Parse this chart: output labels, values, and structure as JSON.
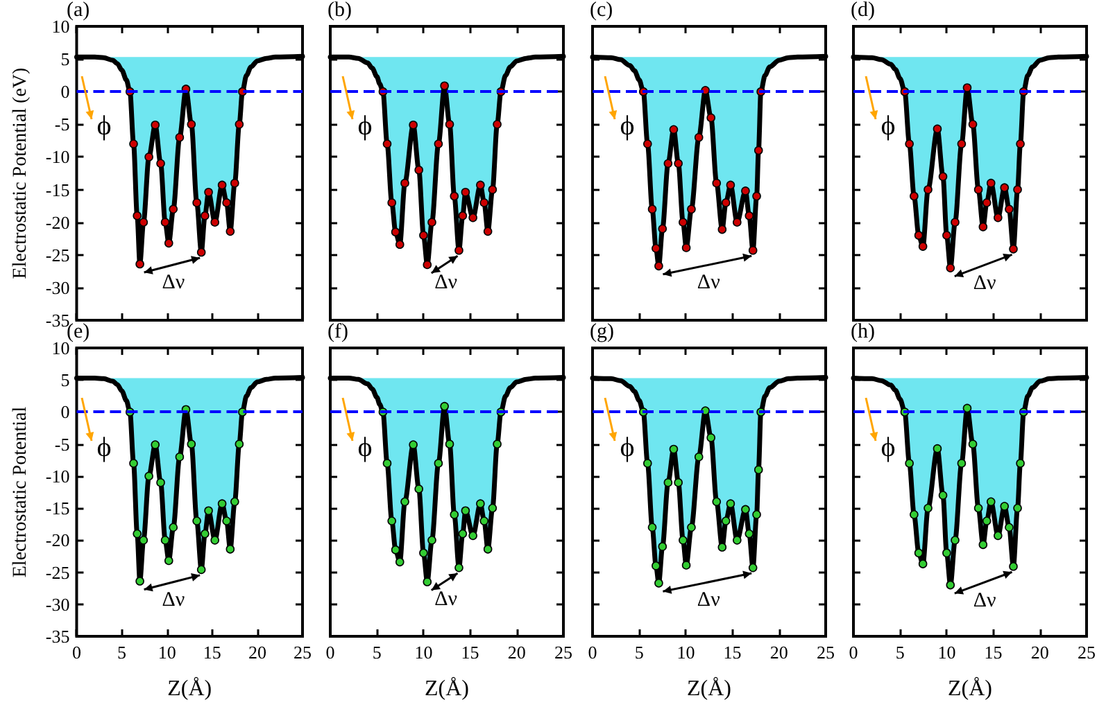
{
  "chart_data": [
    {
      "type": "line",
      "ylabel": "Electrostatic Potential (eV)",
      "xlim": [
        0,
        25
      ],
      "xticks": [
        0,
        5,
        10,
        15,
        20,
        25
      ],
      "ylim": [
        -35,
        10
      ],
      "yticks": [
        -35,
        -30,
        -25,
        -20,
        -15,
        -10,
        -5,
        0,
        5,
        10
      ],
      "tick_labels": "y",
      "annotations": [
        "(a)",
        "ϕ",
        "Δν"
      ],
      "ref_lines": [
        {
          "axis": "y",
          "value": 0,
          "color": "#0000ff",
          "line_style": "dashed"
        }
      ],
      "series": [
        {
          "type": "line",
          "color": "#000000",
          "x": [
            0,
            2,
            3,
            4,
            4.5,
            5,
            5.5,
            5.9,
            6.3,
            6.7,
            7.0,
            7.4,
            8.0,
            8.7,
            9.3,
            9.8,
            10.2,
            10.7,
            11.4,
            12.1,
            12.7,
            13.3,
            13.8,
            14.2,
            14.6,
            15.3,
            16.1,
            16.6,
            17.0,
            17.5,
            18.0,
            18.35,
            18.8,
            19.3,
            20,
            21,
            22,
            25
          ],
          "values": [
            5.3,
            5.3,
            5.2,
            4.8,
            4.3,
            3.3,
            1.8,
            0,
            -8,
            -19,
            -26.4,
            -20,
            -10,
            -5.1,
            -11,
            -20,
            -23.2,
            -18,
            -7,
            0.4,
            -5,
            -17,
            -24.6,
            -19,
            -15.4,
            -20,
            -14.3,
            -17,
            -21.4,
            -14,
            -5,
            0,
            2.5,
            3.8,
            4.7,
            5.1,
            5.3,
            5.4
          ],
          "lower": [
            5.3,
            5.3,
            5.2,
            4.8,
            4.3,
            3.3,
            1.8,
            0,
            -8,
            -19,
            -26.4,
            -20,
            -10,
            -5.1,
            -11,
            -20,
            -23.2,
            -18,
            -7,
            0.4,
            -5,
            -17,
            -24.6,
            -19,
            -15.4,
            -20,
            -14.3,
            -17,
            -21.4,
            -14,
            -5,
            0,
            2.5,
            3.8,
            4.7,
            5.1,
            5.3,
            5.4
          ],
          "upper": [
            5.3,
            5.3,
            5.3,
            5.3,
            5.3,
            5.3,
            5.3,
            5.3,
            5.3,
            5.3,
            5.3,
            5.3,
            5.3,
            5.3,
            5.3,
            5.3,
            5.3,
            5.3,
            5.3,
            5.3,
            5.3,
            5.3,
            5.3,
            5.3,
            5.3,
            5.3,
            5.3,
            5.3,
            5.3,
            5.3,
            5.3,
            5.3,
            5.3,
            5.3,
            5.3,
            5.3,
            5.3,
            5.4
          ]
        },
        {
          "type": "scatter",
          "color": "#cc0000",
          "marker": "circle",
          "x": [
            5.9,
            6.3,
            6.7,
            7.0,
            7.4,
            8.0,
            8.7,
            9.3,
            9.8,
            10.2,
            10.7,
            11.4,
            12.1,
            12.7,
            13.3,
            13.8,
            14.2,
            14.6,
            15.3,
            16.1,
            16.6,
            17.0,
            17.5,
            18.0,
            18.35
          ],
          "values": [
            0,
            -8,
            -19,
            -26.4,
            -20,
            -10,
            -5.1,
            -11,
            -20,
            -23.2,
            -18,
            -7,
            0.4,
            -5,
            -17,
            -24.6,
            -19,
            -15.4,
            -20,
            -14.3,
            -17,
            -21.4,
            -14,
            -5,
            0
          ]
        }
      ]
    },
    {
      "type": "line",
      "xlim": [
        0,
        25
      ],
      "xticks": [
        0,
        5,
        10,
        15,
        20,
        25
      ],
      "ylim": [
        -35,
        10
      ],
      "yticks": [
        -35,
        -30,
        -25,
        -20,
        -15,
        -10,
        -5,
        0,
        5,
        10
      ],
      "tick_labels": false,
      "annotations": [
        "(b)",
        "ϕ",
        "Δν"
      ],
      "ref_lines": [
        {
          "axis": "y",
          "value": 0,
          "color": "#0000ff",
          "line_style": "dashed"
        }
      ],
      "series": [
        {
          "type": "line",
          "color": "#000000",
          "x": [
            0,
            2,
            3,
            4,
            4.5,
            5,
            5.3,
            5.65,
            6.1,
            6.6,
            7.0,
            7.46,
            8.0,
            8.9,
            9.5,
            10.0,
            10.4,
            10.9,
            11.6,
            12.25,
            12.8,
            13.3,
            13.8,
            14.2,
            14.5,
            15.3,
            16.1,
            16.5,
            16.9,
            17.4,
            17.9,
            18.3,
            18.8,
            19.3,
            20,
            21,
            22,
            25
          ],
          "values": [
            5.3,
            5.3,
            5.1,
            4.4,
            3.6,
            2.3,
            1.2,
            0,
            -8,
            -17,
            -21.5,
            -23.4,
            -14,
            -5.1,
            -12,
            -22,
            -26.5,
            -20,
            -8,
            0.9,
            -5,
            -16,
            -24.3,
            -19,
            -15.4,
            -19.3,
            -14.3,
            -17,
            -21.4,
            -15,
            -5,
            0,
            2.5,
            3.8,
            4.7,
            5.1,
            5.3,
            5.4
          ],
          "lower": [
            5.3,
            5.3,
            5.1,
            4.4,
            3.6,
            2.3,
            1.2,
            0,
            -8,
            -17,
            -21.5,
            -23.4,
            -14,
            -5.1,
            -12,
            -22,
            -26.5,
            -20,
            -8,
            0.9,
            -5,
            -16,
            -24.3,
            -19,
            -15.4,
            -19.3,
            -14.3,
            -17,
            -21.4,
            -15,
            -5,
            0,
            2.5,
            3.8,
            4.7,
            5.1,
            5.3,
            5.4
          ],
          "upper": [
            5.3,
            5.3,
            5.3,
            5.3,
            5.3,
            5.3,
            5.3,
            5.3,
            5.3,
            5.3,
            5.3,
            5.3,
            5.3,
            5.3,
            5.3,
            5.3,
            5.3,
            5.3,
            5.3,
            5.3,
            5.3,
            5.3,
            5.3,
            5.3,
            5.3,
            5.3,
            5.3,
            5.3,
            5.3,
            5.3,
            5.3,
            5.3,
            5.3,
            5.3,
            5.3,
            5.3,
            5.3,
            5.4
          ]
        },
        {
          "type": "scatter",
          "color": "#cc0000",
          "marker": "circle",
          "x": [
            5.65,
            6.1,
            6.6,
            7.0,
            7.46,
            8.0,
            8.9,
            9.5,
            10.0,
            10.4,
            10.9,
            11.6,
            12.25,
            12.8,
            13.3,
            13.8,
            14.2,
            14.5,
            15.3,
            16.1,
            16.5,
            16.9,
            17.4,
            17.9,
            18.3
          ],
          "values": [
            0,
            -8,
            -17,
            -21.5,
            -23.4,
            -14,
            -5.1,
            -12,
            -22,
            -26.5,
            -20,
            -8,
            0.9,
            -5,
            -16,
            -24.3,
            -19,
            -15.4,
            -19.3,
            -14.3,
            -17,
            -21.4,
            -15,
            -5,
            0
          ]
        }
      ]
    },
    {
      "type": "line",
      "xlim": [
        0,
        25
      ],
      "xticks": [
        0,
        5,
        10,
        15,
        20,
        25
      ],
      "ylim": [
        -35,
        10
      ],
      "yticks": [
        -35,
        -30,
        -25,
        -20,
        -15,
        -10,
        -5,
        0,
        5,
        10
      ],
      "tick_labels": false,
      "annotations": [
        "(c)",
        "ϕ",
        "Δν"
      ],
      "ref_lines": [
        {
          "axis": "y",
          "value": 0,
          "color": "#0000ff",
          "line_style": "dashed"
        }
      ],
      "series": [
        {
          "type": "line",
          "color": "#000000",
          "x": [
            0,
            2,
            3,
            4,
            4.5,
            5,
            5.45,
            5.9,
            6.4,
            6.8,
            7.1,
            7.5,
            8.1,
            8.7,
            9.2,
            9.7,
            10.05,
            10.6,
            11.4,
            12.1,
            12.7,
            13.3,
            13.9,
            14.3,
            14.8,
            15.5,
            16.4,
            16.8,
            17.2,
            17.6,
            17.8,
            18.05,
            18.5,
            19,
            20,
            21,
            22,
            25
          ],
          "values": [
            5.3,
            5.2,
            4.9,
            4.0,
            3.2,
            1.8,
            0,
            -8,
            -18,
            -24,
            -26.7,
            -21,
            -11,
            -5.8,
            -11,
            -20,
            -23.9,
            -18,
            -7,
            0.2,
            -4,
            -14,
            -21.1,
            -17,
            -14.3,
            -20,
            -15.2,
            -19,
            -24.3,
            -16,
            -9,
            0,
            2.5,
            3.8,
            4.8,
            5.2,
            5.3,
            5.4
          ],
          "lower": [
            5.3,
            5.2,
            4.9,
            4.0,
            3.2,
            1.8,
            0,
            -8,
            -18,
            -24,
            -26.7,
            -21,
            -11,
            -5.8,
            -11,
            -20,
            -23.9,
            -18,
            -7,
            0.2,
            -4,
            -14,
            -21.1,
            -17,
            -14.3,
            -20,
            -15.2,
            -19,
            -24.3,
            -16,
            -9,
            0,
            2.5,
            3.8,
            4.8,
            5.2,
            5.3,
            5.4
          ],
          "upper": [
            5.3,
            5.3,
            5.3,
            5.3,
            5.3,
            5.3,
            5.3,
            5.3,
            5.3,
            5.3,
            5.3,
            5.3,
            5.3,
            5.3,
            5.3,
            5.3,
            5.3,
            5.3,
            5.3,
            5.3,
            5.3,
            5.3,
            5.3,
            5.3,
            5.3,
            5.3,
            5.3,
            5.3,
            5.3,
            5.3,
            5.3,
            5.3,
            5.3,
            5.3,
            5.3,
            5.3,
            5.3,
            5.4
          ]
        },
        {
          "type": "scatter",
          "color": "#cc0000",
          "marker": "circle",
          "x": [
            5.45,
            5.9,
            6.4,
            6.8,
            7.1,
            7.5,
            8.1,
            8.7,
            9.2,
            9.7,
            10.05,
            10.6,
            11.4,
            12.1,
            12.7,
            13.3,
            13.9,
            14.3,
            14.8,
            15.5,
            16.4,
            16.8,
            17.2,
            17.6,
            17.8,
            18.05
          ],
          "values": [
            0,
            -8,
            -18,
            -24,
            -26.7,
            -21,
            -11,
            -5.8,
            -11,
            -20,
            -23.9,
            -18,
            -7,
            0.2,
            -4,
            -14,
            -21.1,
            -17,
            -14.3,
            -20,
            -15.2,
            -19,
            -24.3,
            -16,
            -9,
            0
          ]
        }
      ]
    },
    {
      "type": "line",
      "xlim": [
        0,
        25
      ],
      "xticks": [
        0,
        5,
        10,
        15,
        20,
        25
      ],
      "ylim": [
        -35,
        10
      ],
      "yticks": [
        -35,
        -30,
        -25,
        -20,
        -15,
        -10,
        -5,
        0,
        5,
        10
      ],
      "tick_labels": false,
      "annotations": [
        "(d)",
        "ϕ",
        "Δν"
      ],
      "ref_lines": [
        {
          "axis": "y",
          "value": 0,
          "color": "#0000ff",
          "line_style": "dashed"
        }
      ],
      "series": [
        {
          "type": "line",
          "color": "#000000",
          "x": [
            0,
            2,
            3,
            4,
            4.5,
            5,
            5.5,
            6.0,
            6.5,
            7.0,
            7.45,
            8.0,
            9.0,
            9.6,
            10.0,
            10.4,
            10.9,
            11.6,
            12.2,
            12.8,
            13.4,
            13.9,
            14.3,
            14.75,
            15.5,
            16.2,
            16.7,
            17.15,
            17.6,
            17.9,
            18.25,
            18.7,
            19.2,
            20,
            21,
            22,
            25
          ],
          "values": [
            5.3,
            5.2,
            4.9,
            4.2,
            3.4,
            2.0,
            0,
            -8,
            -16,
            -22,
            -23.7,
            -15,
            -5.7,
            -13,
            -22,
            -27,
            -20,
            -8,
            0.6,
            -5,
            -15,
            -20.7,
            -17,
            -14,
            -19.3,
            -14.7,
            -18,
            -24.1,
            -15,
            -8,
            0,
            2.5,
            3.8,
            4.8,
            5.2,
            5.3,
            5.4
          ],
          "lower": [
            5.3,
            5.2,
            4.9,
            4.2,
            3.4,
            2.0,
            0,
            -8,
            -16,
            -22,
            -23.7,
            -15,
            -5.7,
            -13,
            -22,
            -27,
            -20,
            -8,
            0.6,
            -5,
            -15,
            -20.7,
            -17,
            -14,
            -19.3,
            -14.7,
            -18,
            -24.1,
            -15,
            -8,
            0,
            2.5,
            3.8,
            4.8,
            5.2,
            5.3,
            5.4
          ],
          "upper": [
            5.3,
            5.3,
            5.3,
            5.3,
            5.3,
            5.3,
            5.3,
            5.3,
            5.3,
            5.3,
            5.3,
            5.3,
            5.3,
            5.3,
            5.3,
            5.3,
            5.3,
            5.3,
            5.3,
            5.3,
            5.3,
            5.3,
            5.3,
            5.3,
            5.3,
            5.3,
            5.3,
            5.3,
            5.3,
            5.3,
            5.3,
            5.3,
            5.3,
            5.3,
            5.3,
            5.3,
            5.4
          ]
        },
        {
          "type": "scatter",
          "color": "#cc0000",
          "marker": "circle",
          "x": [
            5.5,
            6.0,
            6.5,
            7.0,
            7.45,
            8.0,
            9.0,
            9.6,
            10.0,
            10.4,
            10.9,
            11.6,
            12.2,
            12.8,
            13.4,
            13.9,
            14.3,
            14.75,
            15.5,
            16.2,
            16.7,
            17.15,
            17.6,
            17.9,
            18.25
          ],
          "values": [
            0,
            -8,
            -16,
            -22,
            -23.7,
            -15,
            -5.7,
            -13,
            -22,
            -27,
            -20,
            -8,
            0.6,
            -5,
            -15,
            -20.7,
            -17,
            -14,
            -19.3,
            -14.7,
            -18,
            -24.1,
            -15,
            -8,
            0
          ]
        }
      ]
    },
    {
      "type": "line",
      "ylabel": "Electrostatic Potential",
      "xlabel": "Z(Å)",
      "xlim": [
        0,
        25
      ],
      "xticks": [
        0,
        5,
        10,
        15,
        20,
        25
      ],
      "ylim": [
        -35,
        10
      ],
      "yticks": [
        -35,
        -30,
        -25,
        -20,
        -15,
        -10,
        -5,
        0,
        5,
        10
      ],
      "annotations": [
        "(e)",
        "ϕ",
        "Δν"
      ],
      "ref_lines": [
        {
          "axis": "y",
          "value": 0,
          "color": "#0000ff",
          "line_style": "dashed"
        }
      ],
      "series": [
        {
          "type": "line",
          "color": "#000000",
          "x": [
            0,
            2,
            3,
            4,
            4.5,
            5,
            5.5,
            5.9,
            6.3,
            6.7,
            7.0,
            7.4,
            8.0,
            8.7,
            9.3,
            9.8,
            10.2,
            10.7,
            11.4,
            12.1,
            12.7,
            13.3,
            13.8,
            14.2,
            14.6,
            15.3,
            16.1,
            16.6,
            17.0,
            17.5,
            18.0,
            18.35,
            18.8,
            19.3,
            20,
            21,
            22,
            25
          ],
          "values": [
            5.3,
            5.3,
            5.2,
            4.8,
            4.3,
            3.3,
            1.8,
            0,
            -8,
            -19,
            -26.4,
            -20,
            -10,
            -5.1,
            -11,
            -20,
            -23.2,
            -18,
            -7,
            0.4,
            -5,
            -17,
            -24.6,
            -19,
            -15.4,
            -20,
            -14.3,
            -17,
            -21.4,
            -14,
            -5,
            0,
            2.5,
            3.8,
            4.7,
            5.1,
            5.3,
            5.4
          ],
          "lower": [
            5.3,
            5.3,
            5.2,
            4.8,
            4.3,
            3.3,
            1.8,
            0,
            -8,
            -19,
            -26.4,
            -20,
            -10,
            -5.1,
            -11,
            -20,
            -23.2,
            -18,
            -7,
            0.4,
            -5,
            -17,
            -24.6,
            -19,
            -15.4,
            -20,
            -14.3,
            -17,
            -21.4,
            -14,
            -5,
            0,
            2.5,
            3.8,
            4.7,
            5.1,
            5.3,
            5.4
          ],
          "upper": [
            5.3,
            5.3,
            5.3,
            5.3,
            5.3,
            5.3,
            5.3,
            5.3,
            5.3,
            5.3,
            5.3,
            5.3,
            5.3,
            5.3,
            5.3,
            5.3,
            5.3,
            5.3,
            5.3,
            5.3,
            5.3,
            5.3,
            5.3,
            5.3,
            5.3,
            5.3,
            5.3,
            5.3,
            5.3,
            5.3,
            5.3,
            5.3,
            5.3,
            5.3,
            5.3,
            5.3,
            5.3,
            5.4
          ]
        },
        {
          "type": "scatter",
          "color": "#33cc33",
          "marker": "circle",
          "x": [
            5.9,
            6.3,
            6.7,
            7.0,
            7.4,
            8.0,
            8.7,
            9.3,
            9.8,
            10.2,
            10.7,
            11.4,
            12.1,
            12.7,
            13.3,
            13.8,
            14.2,
            14.6,
            15.3,
            16.1,
            16.6,
            17.0,
            17.5,
            18.0,
            18.35
          ],
          "values": [
            0,
            -8,
            -19,
            -26.4,
            -20,
            -10,
            -5.1,
            -11,
            -20,
            -23.2,
            -18,
            -7,
            0.4,
            -5,
            -17,
            -24.6,
            -19,
            -15.4,
            -20,
            -14.3,
            -17,
            -21.4,
            -14,
            -5,
            0
          ]
        }
      ]
    },
    {
      "type": "line",
      "xlabel": "Z(Å)",
      "xlim": [
        0,
        25
      ],
      "xticks": [
        0,
        5,
        10,
        15,
        20,
        25
      ],
      "ylim": [
        -35,
        10
      ],
      "yticks": [
        -35,
        -30,
        -25,
        -20,
        -15,
        -10,
        -5,
        0,
        5,
        10
      ],
      "tick_labels": "x",
      "annotations": [
        "(f)",
        "ϕ",
        "Δν"
      ],
      "ref_lines": [
        {
          "axis": "y",
          "value": 0,
          "color": "#0000ff",
          "line_style": "dashed"
        }
      ],
      "series": [
        {
          "type": "line",
          "color": "#000000",
          "x": [
            0,
            2,
            3,
            4,
            4.5,
            5,
            5.3,
            5.65,
            6.1,
            6.6,
            7.0,
            7.46,
            8.0,
            8.9,
            9.5,
            10.0,
            10.4,
            10.9,
            11.6,
            12.25,
            12.8,
            13.3,
            13.8,
            14.2,
            14.5,
            15.3,
            16.1,
            16.5,
            16.9,
            17.4,
            17.9,
            18.3,
            18.8,
            19.3,
            20,
            21,
            22,
            25
          ],
          "values": [
            5.3,
            5.3,
            5.1,
            4.4,
            3.6,
            2.3,
            1.2,
            0,
            -8,
            -17,
            -21.5,
            -23.4,
            -14,
            -5.1,
            -12,
            -22,
            -26.5,
            -20,
            -8,
            0.9,
            -5,
            -16,
            -24.3,
            -19,
            -15.4,
            -19.3,
            -14.3,
            -17,
            -21.4,
            -15,
            -5,
            0,
            2.5,
            3.8,
            4.7,
            5.1,
            5.3,
            5.4
          ],
          "lower": [
            5.3,
            5.3,
            5.1,
            4.4,
            3.6,
            2.3,
            1.2,
            0,
            -8,
            -17,
            -21.5,
            -23.4,
            -14,
            -5.1,
            -12,
            -22,
            -26.5,
            -20,
            -8,
            0.9,
            -5,
            -16,
            -24.3,
            -19,
            -15.4,
            -19.3,
            -14.3,
            -17,
            -21.4,
            -15,
            -5,
            0,
            2.5,
            3.8,
            4.7,
            5.1,
            5.3,
            5.4
          ],
          "upper": [
            5.3,
            5.3,
            5.3,
            5.3,
            5.3,
            5.3,
            5.3,
            5.3,
            5.3,
            5.3,
            5.3,
            5.3,
            5.3,
            5.3,
            5.3,
            5.3,
            5.3,
            5.3,
            5.3,
            5.3,
            5.3,
            5.3,
            5.3,
            5.3,
            5.3,
            5.3,
            5.3,
            5.3,
            5.3,
            5.3,
            5.3,
            5.3,
            5.3,
            5.3,
            5.3,
            5.3,
            5.3,
            5.4
          ]
        },
        {
          "type": "scatter",
          "color": "#33cc33",
          "marker": "circle",
          "x": [
            5.65,
            6.1,
            6.6,
            7.0,
            7.46,
            8.0,
            8.9,
            9.5,
            10.0,
            10.4,
            10.9,
            11.6,
            12.25,
            12.8,
            13.3,
            13.8,
            14.2,
            14.5,
            15.3,
            16.1,
            16.5,
            16.9,
            17.4,
            17.9,
            18.3
          ],
          "values": [
            0,
            -8,
            -17,
            -21.5,
            -23.4,
            -14,
            -5.1,
            -12,
            -22,
            -26.5,
            -20,
            -8,
            0.9,
            -5,
            -16,
            -24.3,
            -19,
            -15.4,
            -19.3,
            -14.3,
            -17,
            -21.4,
            -15,
            -5,
            0
          ]
        }
      ]
    },
    {
      "type": "line",
      "xlabel": "Z(Å)",
      "xlim": [
        0,
        25
      ],
      "xticks": [
        0,
        5,
        10,
        15,
        20,
        25
      ],
      "ylim": [
        -35,
        10
      ],
      "yticks": [
        -35,
        -30,
        -25,
        -20,
        -15,
        -10,
        -5,
        0,
        5,
        10
      ],
      "tick_labels": "x",
      "annotations": [
        "(g)",
        "ϕ",
        "Δν"
      ],
      "ref_lines": [
        {
          "axis": "y",
          "value": 0,
          "color": "#0000ff",
          "line_style": "dashed"
        }
      ],
      "series": [
        {
          "type": "line",
          "color": "#000000",
          "x": [
            0,
            2,
            3,
            4,
            4.5,
            5,
            5.45,
            5.9,
            6.4,
            6.8,
            7.1,
            7.5,
            8.1,
            8.7,
            9.2,
            9.7,
            10.05,
            10.6,
            11.4,
            12.1,
            12.7,
            13.3,
            13.9,
            14.3,
            14.8,
            15.5,
            16.4,
            16.8,
            17.2,
            17.6,
            17.8,
            18.05,
            18.5,
            19,
            20,
            21,
            22,
            25
          ],
          "values": [
            5.3,
            5.2,
            4.9,
            4.0,
            3.2,
            1.8,
            0,
            -8,
            -18,
            -24,
            -26.7,
            -21,
            -11,
            -5.8,
            -11,
            -20,
            -23.9,
            -18,
            -7,
            0.2,
            -4,
            -14,
            -21.1,
            -17,
            -14.3,
            -20,
            -15.2,
            -19,
            -24.3,
            -16,
            -9,
            0,
            2.5,
            3.8,
            4.8,
            5.2,
            5.3,
            5.4
          ],
          "lower": [
            5.3,
            5.2,
            4.9,
            4.0,
            3.2,
            1.8,
            0,
            -8,
            -18,
            -24,
            -26.7,
            -21,
            -11,
            -5.8,
            -11,
            -20,
            -23.9,
            -18,
            -7,
            0.2,
            -4,
            -14,
            -21.1,
            -17,
            -14.3,
            -20,
            -15.2,
            -19,
            -24.3,
            -16,
            -9,
            0,
            2.5,
            3.8,
            4.8,
            5.2,
            5.3,
            5.4
          ],
          "upper": [
            5.3,
            5.3,
            5.3,
            5.3,
            5.3,
            5.3,
            5.3,
            5.3,
            5.3,
            5.3,
            5.3,
            5.3,
            5.3,
            5.3,
            5.3,
            5.3,
            5.3,
            5.3,
            5.3,
            5.3,
            5.3,
            5.3,
            5.3,
            5.3,
            5.3,
            5.3,
            5.3,
            5.3,
            5.3,
            5.3,
            5.3,
            5.3,
            5.3,
            5.3,
            5.3,
            5.3,
            5.3,
            5.4
          ]
        },
        {
          "type": "scatter",
          "color": "#33cc33",
          "marker": "circle",
          "x": [
            5.45,
            5.9,
            6.4,
            6.8,
            7.1,
            7.5,
            8.1,
            8.7,
            9.2,
            9.7,
            10.05,
            10.6,
            11.4,
            12.1,
            12.7,
            13.3,
            13.9,
            14.3,
            14.8,
            15.5,
            16.4,
            16.8,
            17.2,
            17.6,
            17.8,
            18.05
          ],
          "values": [
            0,
            -8,
            -18,
            -24,
            -26.7,
            -21,
            -11,
            -5.8,
            -11,
            -20,
            -23.9,
            -18,
            -7,
            0.2,
            -4,
            -14,
            -21.1,
            -17,
            -14.3,
            -20,
            -15.2,
            -19,
            -24.3,
            -16,
            -9,
            0
          ]
        }
      ]
    },
    {
      "type": "line",
      "xlabel": "Z(Å)",
      "xlim": [
        0,
        25
      ],
      "xticks": [
        0,
        5,
        10,
        15,
        20,
        25
      ],
      "ylim": [
        -35,
        10
      ],
      "yticks": [
        -35,
        -30,
        -25,
        -20,
        -15,
        -10,
        -5,
        0,
        5,
        10
      ],
      "tick_labels": "x",
      "annotations": [
        "(h)",
        "ϕ",
        "Δν"
      ],
      "ref_lines": [
        {
          "axis": "y",
          "value": 0,
          "color": "#0000ff",
          "line_style": "dashed"
        }
      ],
      "series": [
        {
          "type": "line",
          "color": "#000000",
          "x": [
            0,
            2,
            3,
            4,
            4.5,
            5,
            5.5,
            6.0,
            6.5,
            7.0,
            7.45,
            8.0,
            9.0,
            9.6,
            10.0,
            10.4,
            10.9,
            11.6,
            12.2,
            12.8,
            13.4,
            13.9,
            14.3,
            14.75,
            15.5,
            16.2,
            16.7,
            17.15,
            17.6,
            17.9,
            18.25,
            18.7,
            19.2,
            20,
            21,
            22,
            25
          ],
          "values": [
            5.3,
            5.2,
            4.9,
            4.2,
            3.4,
            2.0,
            0,
            -8,
            -16,
            -22,
            -23.7,
            -15,
            -5.7,
            -13,
            -22,
            -27,
            -20,
            -8,
            0.6,
            -5,
            -15,
            -20.7,
            -17,
            -14,
            -19.3,
            -14.7,
            -18,
            -24.1,
            -15,
            -8,
            0,
            2.5,
            3.8,
            4.8,
            5.2,
            5.3,
            5.4
          ],
          "lower": [
            5.3,
            5.2,
            4.9,
            4.2,
            3.4,
            2.0,
            0,
            -8,
            -16,
            -22,
            -23.7,
            -15,
            -5.7,
            -13,
            -22,
            -27,
            -20,
            -8,
            0.6,
            -5,
            -15,
            -20.7,
            -17,
            -14,
            -19.3,
            -14.7,
            -18,
            -24.1,
            -15,
            -8,
            0,
            2.5,
            3.8,
            4.8,
            5.2,
            5.3,
            5.4
          ],
          "upper": [
            5.3,
            5.3,
            5.3,
            5.3,
            5.3,
            5.3,
            5.3,
            5.3,
            5.3,
            5.3,
            5.3,
            5.3,
            5.3,
            5.3,
            5.3,
            5.3,
            5.3,
            5.3,
            5.3,
            5.3,
            5.3,
            5.3,
            5.3,
            5.3,
            5.3,
            5.3,
            5.3,
            5.3,
            5.3,
            5.3,
            5.3,
            5.3,
            5.3,
            5.3,
            5.3,
            5.3,
            5.4
          ]
        },
        {
          "type": "scatter",
          "color": "#33cc33",
          "marker": "circle",
          "x": [
            5.5,
            6.0,
            6.5,
            7.0,
            7.45,
            8.0,
            9.0,
            9.6,
            10.0,
            10.4,
            10.9,
            11.6,
            12.2,
            12.8,
            13.4,
            13.9,
            14.3,
            14.75,
            15.5,
            16.2,
            16.7,
            17.15,
            17.6,
            17.9,
            18.25
          ],
          "values": [
            0,
            -8,
            -16,
            -22,
            -23.7,
            -15,
            -5.7,
            -13,
            -22,
            -27,
            -20,
            -8,
            0.6,
            -5,
            -15,
            -20.7,
            -17,
            -14,
            -19.3,
            -14.7,
            -18,
            -24.1,
            -15,
            -8,
            0
          ]
        }
      ]
    }
  ]
}
